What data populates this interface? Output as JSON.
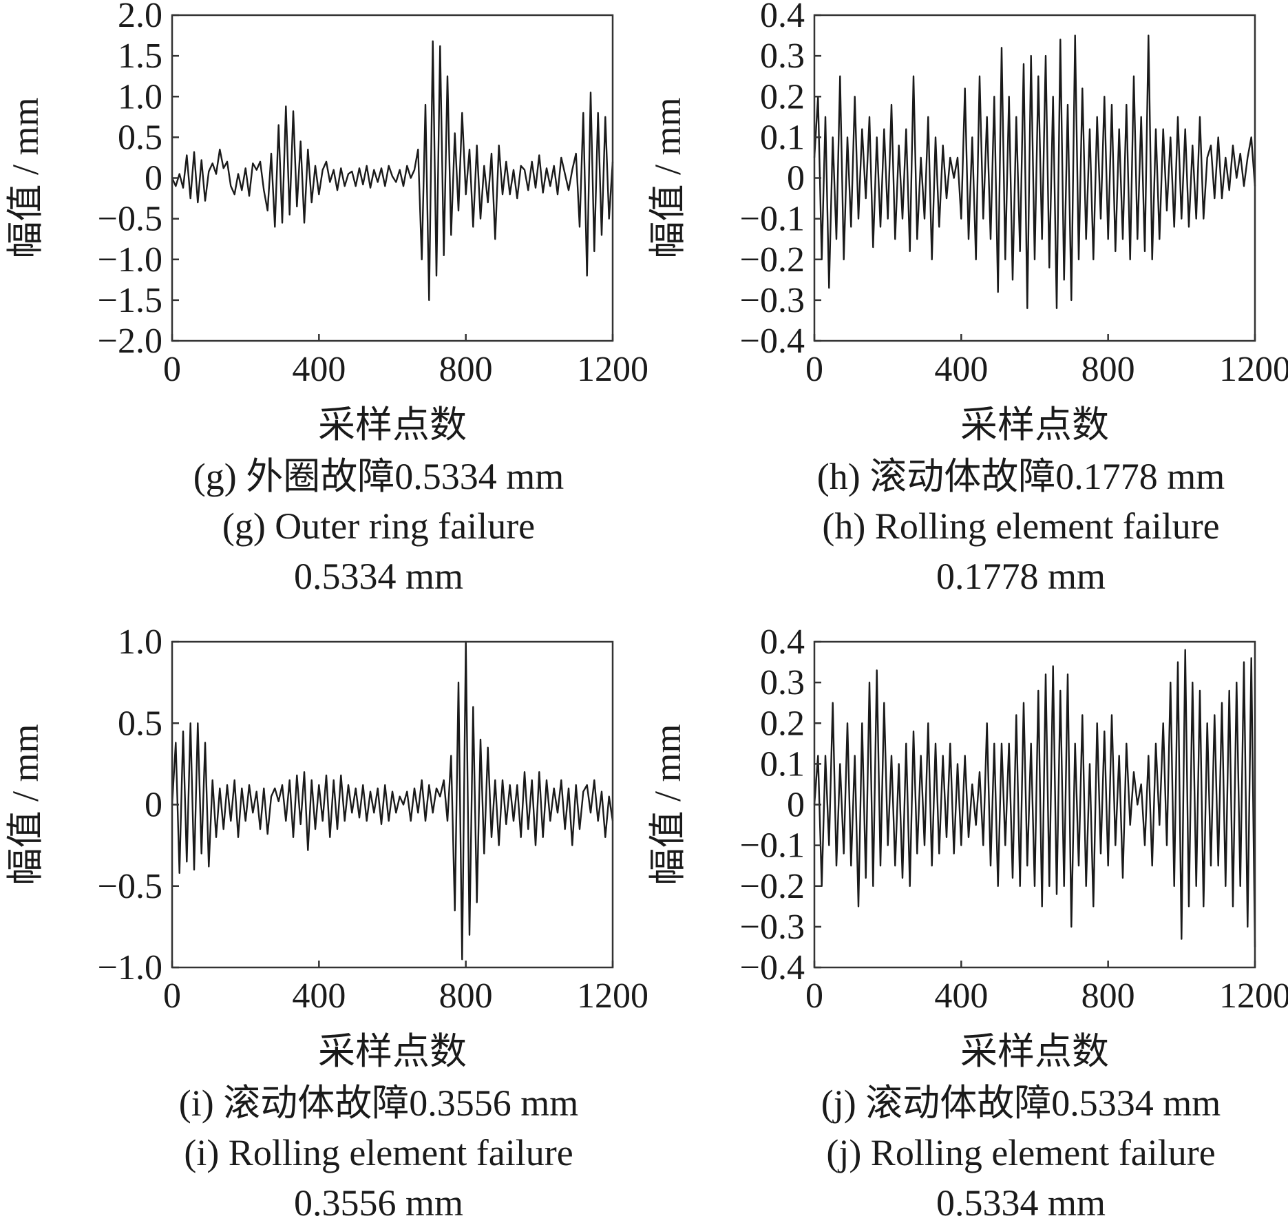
{
  "chart_data": [
    {
      "type": "line",
      "id": "g",
      "xlabel": "采样点数",
      "ylabel": "幅值 / mm",
      "xlim": [
        0,
        1200
      ],
      "ylim": [
        -2.0,
        2.0
      ],
      "xticks": [
        0,
        400,
        800,
        1200
      ],
      "xtick_labels": [
        "0",
        "400",
        "800",
        "1200"
      ],
      "yticks": [
        2.0,
        1.5,
        1.0,
        0.5,
        0,
        -0.5,
        -1.0,
        -1.5,
        -2.0
      ],
      "ytick_labels": [
        "2.0",
        "1.5",
        "1.0",
        "0.5",
        "0",
        "−0.5",
        "−1.0",
        "−1.5",
        "−2.0"
      ],
      "grid": false,
      "line_color": "#1a1a1a",
      "caption_lines": [
        "(g)  外圈故障0.5334 mm",
        "(g)  Outer ring failure",
        "0.5334 mm"
      ],
      "x": [
        0,
        10,
        20,
        30,
        40,
        50,
        60,
        70,
        80,
        90,
        100,
        110,
        120,
        130,
        140,
        150,
        160,
        170,
        180,
        190,
        200,
        210,
        220,
        230,
        240,
        250,
        260,
        270,
        280,
        290,
        300,
        310,
        320,
        330,
        340,
        350,
        360,
        370,
        380,
        390,
        400,
        410,
        420,
        430,
        440,
        450,
        460,
        470,
        480,
        490,
        500,
        510,
        520,
        530,
        540,
        550,
        560,
        570,
        580,
        590,
        600,
        610,
        620,
        630,
        640,
        650,
        660,
        670,
        680,
        690,
        700,
        710,
        720,
        730,
        740,
        750,
        760,
        770,
        780,
        790,
        800,
        810,
        820,
        830,
        840,
        850,
        860,
        870,
        880,
        890,
        900,
        910,
        920,
        930,
        940,
        950,
        960,
        970,
        980,
        990,
        1000,
        1010,
        1020,
        1030,
        1040,
        1050,
        1060,
        1070,
        1080,
        1090,
        1100,
        1110,
        1120,
        1130,
        1140,
        1150,
        1160,
        1170,
        1180,
        1190,
        1200
      ],
      "values": [
        0,
        -0.1,
        0.05,
        -0.12,
        0.28,
        -0.25,
        0.32,
        -0.3,
        0.22,
        -0.28,
        0.08,
        0.18,
        0.05,
        0.35,
        0.12,
        0.2,
        -0.1,
        -0.2,
        0.05,
        -0.15,
        0.12,
        -0.22,
        0.18,
        0.1,
        0.2,
        -0.15,
        -0.4,
        0.3,
        -0.6,
        0.65,
        -0.55,
        0.88,
        -0.45,
        0.82,
        -0.35,
        0.45,
        -0.55,
        0.35,
        -0.3,
        0.15,
        -0.2,
        0.1,
        0.2,
        -0.05,
        0.1,
        -0.15,
        0.12,
        -0.1,
        0.05,
        0.08,
        -0.1,
        0.12,
        -0.08,
        0.15,
        -0.12,
        0.1,
        -0.05,
        0.12,
        -0.1,
        0.15,
        0.02,
        -0.05,
        0.1,
        -0.1,
        0.15,
        0.0,
        0.1,
        0.35,
        -1.0,
        0.9,
        -1.5,
        1.68,
        -1.2,
        1.62,
        -0.95,
        1.25,
        -0.7,
        0.55,
        -0.4,
        0.8,
        -0.2,
        0.35,
        -0.6,
        0.4,
        -0.5,
        0.15,
        -0.3,
        0.3,
        -0.75,
        0.4,
        -0.2,
        0.2,
        -0.2,
        0.1,
        -0.25,
        0.15,
        0.1,
        -0.15,
        0.2,
        -0.12,
        0.28,
        -0.18,
        0.12,
        -0.1,
        0.15,
        -0.2,
        0.25,
        0.05,
        -0.15,
        0.1,
        0.3,
        -0.6,
        0.8,
        -1.2,
        1.05,
        -0.9,
        0.8,
        -0.7,
        0.75,
        -0.5,
        0.2
      ]
    },
    {
      "type": "line",
      "id": "h",
      "xlabel": "采样点数",
      "ylabel": "幅值 / mm",
      "xlim": [
        0,
        1200
      ],
      "ylim": [
        -0.4,
        0.4
      ],
      "xticks": [
        0,
        400,
        800,
        1200
      ],
      "xtick_labels": [
        "0",
        "400",
        "800",
        "1200"
      ],
      "yticks": [
        0.4,
        0.3,
        0.2,
        0.1,
        0,
        -0.1,
        -0.2,
        -0.3,
        -0.4
      ],
      "ytick_labels": [
        "0.4",
        "0.3",
        "0.2",
        "0.1",
        "0",
        "−0.1",
        "−0.2",
        "−0.3",
        "−0.4"
      ],
      "grid": false,
      "line_color": "#1a1a1a",
      "caption_lines": [
        "(h)  滚动体故障0.1778 mm",
        "(h)  Rolling element failure",
        "0.1778 mm"
      ],
      "x": [
        0,
        10,
        20,
        30,
        40,
        50,
        60,
        70,
        80,
        90,
        100,
        110,
        120,
        130,
        140,
        150,
        160,
        170,
        180,
        190,
        200,
        210,
        220,
        230,
        240,
        250,
        260,
        270,
        280,
        290,
        300,
        310,
        320,
        330,
        340,
        350,
        360,
        370,
        380,
        390,
        400,
        410,
        420,
        430,
        440,
        450,
        460,
        470,
        480,
        490,
        500,
        510,
        520,
        530,
        540,
        550,
        560,
        570,
        580,
        590,
        600,
        610,
        620,
        630,
        640,
        650,
        660,
        670,
        680,
        690,
        700,
        710,
        720,
        730,
        740,
        750,
        760,
        770,
        780,
        790,
        800,
        810,
        820,
        830,
        840,
        850,
        860,
        870,
        880,
        890,
        900,
        910,
        920,
        930,
        940,
        950,
        960,
        970,
        980,
        990,
        1000,
        1010,
        1020,
        1030,
        1040,
        1050,
        1060,
        1070,
        1080,
        1090,
        1100,
        1110,
        1120,
        1130,
        1140,
        1150,
        1160,
        1170,
        1180,
        1190,
        1200
      ],
      "values": [
        0.05,
        0.2,
        -0.2,
        0.15,
        -0.27,
        0.1,
        -0.15,
        0.25,
        -0.2,
        0.1,
        -0.12,
        0.2,
        -0.1,
        0.12,
        -0.05,
        0.15,
        -0.17,
        0.1,
        -0.12,
        0.12,
        -0.1,
        0.18,
        -0.15,
        0.08,
        -0.1,
        0.12,
        -0.18,
        0.25,
        -0.15,
        0.05,
        -0.1,
        0.15,
        -0.2,
        0.1,
        -0.12,
        0.08,
        -0.05,
        0.05,
        0.0,
        0.05,
        -0.1,
        0.22,
        -0.15,
        0.1,
        -0.2,
        0.25,
        -0.1,
        0.15,
        -0.15,
        0.2,
        -0.28,
        0.32,
        -0.2,
        0.2,
        -0.25,
        0.15,
        -0.18,
        0.28,
        -0.32,
        0.3,
        -0.2,
        0.25,
        -0.15,
        0.3,
        -0.22,
        0.2,
        -0.32,
        0.34,
        -0.25,
        0.18,
        -0.3,
        0.35,
        -0.2,
        0.22,
        -0.15,
        0.12,
        -0.2,
        0.15,
        -0.1,
        0.2,
        -0.15,
        0.18,
        -0.18,
        0.12,
        -0.15,
        0.18,
        -0.2,
        0.25,
        -0.15,
        0.15,
        -0.18,
        0.35,
        -0.2,
        0.12,
        -0.15,
        0.12,
        -0.08,
        0.1,
        -0.12,
        0.15,
        -0.1,
        0.12,
        -0.12,
        0.08,
        -0.1,
        0.15,
        -0.1,
        0.05,
        0.08,
        -0.05,
        0.1,
        -0.05,
        0.05,
        -0.03,
        0.08,
        0.0,
        0.06,
        -0.02,
        0.05,
        0.1,
        -0.02
      ]
    },
    {
      "type": "line",
      "id": "i",
      "xlabel": "采样点数",
      "ylabel": "幅值 / mm",
      "xlim": [
        0,
        1200
      ],
      "ylim": [
        -1.0,
        1.0
      ],
      "xticks": [
        0,
        400,
        800,
        1200
      ],
      "xtick_labels": [
        "0",
        "400",
        "800",
        "1200"
      ],
      "yticks": [
        1.0,
        0.5,
        0,
        -0.5,
        -1.0
      ],
      "ytick_labels": [
        "1.0",
        "0.5",
        "0",
        "−0.5",
        "−1.0"
      ],
      "grid": false,
      "line_color": "#1a1a1a",
      "caption_lines": [
        "(i)  滚动体故障0.3556 mm",
        "(i)  Rolling element failure",
        "0.3556 mm"
      ],
      "x": [
        0,
        10,
        20,
        30,
        40,
        50,
        60,
        70,
        80,
        90,
        100,
        110,
        120,
        130,
        140,
        150,
        160,
        170,
        180,
        190,
        200,
        210,
        220,
        230,
        240,
        250,
        260,
        270,
        280,
        290,
        300,
        310,
        320,
        330,
        340,
        350,
        360,
        370,
        380,
        390,
        400,
        410,
        420,
        430,
        440,
        450,
        460,
        470,
        480,
        490,
        500,
        510,
        520,
        530,
        540,
        550,
        560,
        570,
        580,
        590,
        600,
        610,
        620,
        630,
        640,
        650,
        660,
        670,
        680,
        690,
        700,
        710,
        720,
        730,
        740,
        750,
        760,
        770,
        780,
        790,
        800,
        810,
        820,
        830,
        840,
        850,
        860,
        870,
        880,
        890,
        900,
        910,
        920,
        930,
        940,
        950,
        960,
        970,
        980,
        990,
        1000,
        1010,
        1020,
        1030,
        1040,
        1050,
        1060,
        1070,
        1080,
        1090,
        1100,
        1110,
        1120,
        1130,
        1140,
        1150,
        1160,
        1170,
        1180,
        1190,
        1200
      ],
      "values": [
        0.0,
        0.38,
        -0.42,
        0.45,
        -0.35,
        0.5,
        -0.4,
        0.5,
        -0.3,
        0.38,
        -0.38,
        0.15,
        -0.2,
        0.1,
        -0.15,
        0.12,
        -0.1,
        0.15,
        -0.2,
        0.1,
        -0.1,
        0.12,
        -0.05,
        0.08,
        -0.15,
        0.1,
        -0.18,
        0.05,
        0.1,
        0.02,
        0.12,
        -0.1,
        0.15,
        -0.2,
        0.18,
        -0.12,
        0.2,
        -0.28,
        0.15,
        -0.15,
        0.12,
        -0.1,
        0.18,
        -0.2,
        0.15,
        -0.15,
        0.18,
        -0.1,
        0.12,
        -0.05,
        0.1,
        -0.08,
        0.12,
        -0.1,
        0.08,
        -0.05,
        0.1,
        -0.12,
        0.12,
        -0.1,
        0.08,
        -0.05,
        0.05,
        0.0,
        0.08,
        -0.1,
        0.1,
        -0.05,
        0.15,
        -0.1,
        0.12,
        -0.05,
        0.1,
        0.05,
        0.15,
        -0.1,
        0.3,
        -0.65,
        0.75,
        -0.95,
        1.0,
        -0.8,
        0.6,
        -0.6,
        0.4,
        -0.3,
        0.35,
        -0.2,
        0.15,
        -0.25,
        0.15,
        -0.12,
        0.12,
        -0.1,
        0.12,
        -0.2,
        0.2,
        -0.15,
        0.15,
        -0.25,
        0.2,
        -0.2,
        0.15,
        -0.1,
        0.1,
        -0.05,
        0.15,
        -0.15,
        0.1,
        -0.25,
        0.12,
        -0.15,
        0.08,
        0.12,
        -0.05,
        0.15,
        -0.1,
        0.08,
        -0.2,
        0.05,
        -0.1
      ]
    },
    {
      "type": "line",
      "id": "j",
      "xlabel": "采样点数",
      "ylabel": "幅值 / mm",
      "xlim": [
        0,
        1200
      ],
      "ylim": [
        -0.4,
        0.4
      ],
      "xticks": [
        0,
        400,
        800,
        1200
      ],
      "xtick_labels": [
        "0",
        "400",
        "800",
        "1200"
      ],
      "yticks": [
        0.4,
        0.3,
        0.2,
        0.1,
        0,
        -0.1,
        -0.2,
        -0.3,
        -0.4
      ],
      "ytick_labels": [
        "0.4",
        "0.3",
        "0.2",
        "0.1",
        "0",
        "−0.1",
        "−0.2",
        "−0.3",
        "−0.4"
      ],
      "grid": false,
      "line_color": "#1a1a1a",
      "caption_lines": [
        "(j)  滚动体故障0.5334 mm",
        "(j)  Rolling element failure",
        "0.5334 mm"
      ],
      "x": [
        0,
        10,
        20,
        30,
        40,
        50,
        60,
        70,
        80,
        90,
        100,
        110,
        120,
        130,
        140,
        150,
        160,
        170,
        180,
        190,
        200,
        210,
        220,
        230,
        240,
        250,
        260,
        270,
        280,
        290,
        300,
        310,
        320,
        330,
        340,
        350,
        360,
        370,
        380,
        390,
        400,
        410,
        420,
        430,
        440,
        450,
        460,
        470,
        480,
        490,
        500,
        510,
        520,
        530,
        540,
        550,
        560,
        570,
        580,
        590,
        600,
        610,
        620,
        630,
        640,
        650,
        660,
        670,
        680,
        690,
        700,
        710,
        720,
        730,
        740,
        750,
        760,
        770,
        780,
        790,
        800,
        810,
        820,
        830,
        840,
        850,
        860,
        870,
        880,
        890,
        900,
        910,
        920,
        930,
        940,
        950,
        960,
        970,
        980,
        990,
        1000,
        1010,
        1020,
        1030,
        1040,
        1050,
        1060,
        1070,
        1080,
        1090,
        1100,
        1110,
        1120,
        1130,
        1140,
        1150,
        1160,
        1170,
        1180,
        1190,
        1200
      ],
      "values": [
        0.0,
        0.12,
        -0.2,
        0.12,
        -0.1,
        0.25,
        -0.15,
        0.1,
        -0.12,
        0.2,
        -0.15,
        0.12,
        -0.25,
        0.2,
        -0.18,
        0.3,
        -0.2,
        0.33,
        -0.15,
        0.25,
        -0.1,
        0.12,
        -0.15,
        0.1,
        -0.18,
        0.15,
        -0.2,
        0.18,
        -0.12,
        0.12,
        -0.1,
        0.2,
        -0.15,
        0.15,
        -0.12,
        0.12,
        -0.08,
        0.15,
        -0.12,
        0.1,
        -0.1,
        0.12,
        -0.08,
        0.05,
        -0.05,
        0.08,
        -0.1,
        0.2,
        -0.15,
        0.15,
        -0.2,
        0.15,
        -0.1,
        0.15,
        -0.18,
        0.22,
        -0.2,
        0.25,
        -0.15,
        0.15,
        -0.2,
        0.28,
        -0.25,
        0.32,
        -0.2,
        0.34,
        -0.22,
        0.28,
        -0.2,
        0.32,
        -0.3,
        0.15,
        -0.15,
        0.22,
        -0.2,
        0.1,
        -0.25,
        0.2,
        -0.12,
        0.18,
        -0.15,
        0.22,
        -0.1,
        0.12,
        -0.18,
        0.15,
        -0.05,
        0.08,
        0.0,
        0.05,
        -0.1,
        0.12,
        -0.15,
        0.15,
        -0.05,
        0.2,
        -0.1,
        0.3,
        -0.2,
        0.35,
        -0.33,
        0.38,
        -0.25,
        0.3,
        -0.2,
        0.28,
        -0.25,
        0.2,
        -0.15,
        0.22,
        -0.15,
        0.25,
        -0.2,
        0.28,
        -0.25,
        0.3,
        -0.2,
        0.35,
        -0.3,
        0.36,
        -0.35
      ]
    }
  ]
}
